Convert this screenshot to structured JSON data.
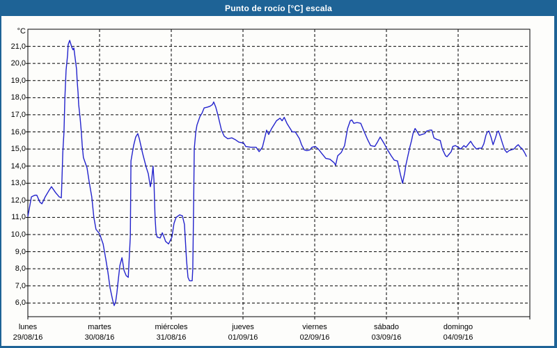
{
  "window": {
    "title": "Punto de rocío [°C] escala"
  },
  "colors": {
    "frame_and_titlebar": "#1e6396",
    "background": "#fdfdfb",
    "line": "#2222cc",
    "grid": "#000000",
    "text": "#000000"
  },
  "chart_data": {
    "type": "line",
    "title": "Punto de rocío [°C] escala",
    "ylabel": "°C",
    "xlabel": "",
    "grid": "dashed",
    "legend": "none",
    "ylim": [
      5.2,
      22.0
    ],
    "yticks": {
      "min": 6,
      "max": 21,
      "step": 1,
      "decimal_separator": ","
    },
    "x_hours_range": [
      0,
      168
    ],
    "x_day_ticks_hours": [
      0,
      24,
      48,
      72,
      96,
      120,
      144,
      168
    ],
    "day_labels": [
      {
        "day": "lunes",
        "date": "29/08/16"
      },
      {
        "day": "martes",
        "date": "30/08/16"
      },
      {
        "day": "miércoles",
        "date": "31/08/16"
      },
      {
        "day": "jueves",
        "date": "01/09/16"
      },
      {
        "day": "viernes",
        "date": "02/09/16"
      },
      {
        "day": "sábado",
        "date": "03/09/16"
      },
      {
        "day": "domingo",
        "date": "04/09/16"
      }
    ],
    "series": [
      {
        "name": "Punto de rocío",
        "unit": "°C",
        "points_hour_value": [
          [
            0,
            11.05
          ],
          [
            1.2,
            12.2
          ],
          [
            2.3,
            12.3
          ],
          [
            3,
            12.3
          ],
          [
            4,
            11.9
          ],
          [
            4.7,
            11.8
          ],
          [
            5.8,
            12.2
          ],
          [
            7,
            12.55
          ],
          [
            7.9,
            12.8
          ],
          [
            9.3,
            12.45
          ],
          [
            10.5,
            12.2
          ],
          [
            11.2,
            12.15
          ],
          [
            11.4,
            13.1
          ],
          [
            11.7,
            14.8
          ],
          [
            12.1,
            16
          ],
          [
            12.4,
            18
          ],
          [
            12.8,
            19.6
          ],
          [
            13.3,
            20.5
          ],
          [
            13.5,
            21.1
          ],
          [
            14,
            21.35
          ],
          [
            14.7,
            20.95
          ],
          [
            15.1,
            20.8
          ],
          [
            15.4,
            20.9
          ],
          [
            15.8,
            20.35
          ],
          [
            16.3,
            19.65
          ],
          [
            16.5,
            19
          ],
          [
            16.8,
            18.3
          ],
          [
            17,
            17.6
          ],
          [
            17.5,
            16.8
          ],
          [
            17.9,
            16
          ],
          [
            18.2,
            15.2
          ],
          [
            18.6,
            14.5
          ],
          [
            19.8,
            13.9
          ],
          [
            20.5,
            13.1
          ],
          [
            21.4,
            12.2
          ],
          [
            22.1,
            11
          ],
          [
            22.8,
            10.3
          ],
          [
            24,
            10.05
          ],
          [
            25.2,
            9.45
          ],
          [
            26.1,
            8.55
          ],
          [
            26.8,
            7.8
          ],
          [
            27.5,
            6.9
          ],
          [
            28.4,
            6.15
          ],
          [
            28.9,
            5.85
          ],
          [
            29.4,
            6.1
          ],
          [
            29.8,
            6.6
          ],
          [
            30.3,
            7.4
          ],
          [
            30.8,
            8.2
          ],
          [
            31.5,
            8.65
          ],
          [
            32.2,
            7.9
          ],
          [
            32.9,
            7.6
          ],
          [
            33.6,
            7.5
          ],
          [
            34.3,
            9.9
          ],
          [
            34.5,
            14.3
          ],
          [
            35,
            14.8
          ],
          [
            35.4,
            15.2
          ],
          [
            36.1,
            15.7
          ],
          [
            36.8,
            15.9
          ],
          [
            37.3,
            15.6
          ],
          [
            38.4,
            14.75
          ],
          [
            39.6,
            13.95
          ],
          [
            40.3,
            13.55
          ],
          [
            40.8,
            13
          ],
          [
            41,
            12.8
          ],
          [
            41.5,
            13.3
          ],
          [
            41.9,
            14
          ],
          [
            42.2,
            13.2
          ],
          [
            42.4,
            11.9
          ],
          [
            42.6,
            10.95
          ],
          [
            42.9,
            10.1
          ],
          [
            43.3,
            9.85
          ],
          [
            44.3,
            9.8
          ],
          [
            45,
            10.1
          ],
          [
            45.7,
            9.8
          ],
          [
            46.1,
            9.6
          ],
          [
            47.1,
            9.45
          ],
          [
            48.2,
            9.85
          ],
          [
            48.9,
            10.65
          ],
          [
            49.6,
            11
          ],
          [
            50.8,
            11.15
          ],
          [
            51.7,
            11.1
          ],
          [
            52.4,
            10.6
          ],
          [
            53.1,
            8.5
          ],
          [
            53.6,
            7.5
          ],
          [
            54.1,
            7.3
          ],
          [
            55,
            7.3
          ],
          [
            55.2,
            8
          ],
          [
            55.5,
            12
          ],
          [
            55.7,
            15
          ],
          [
            56.2,
            16
          ],
          [
            56.6,
            16.4
          ],
          [
            57.6,
            16.9
          ],
          [
            58.3,
            17.1
          ],
          [
            59,
            17.4
          ],
          [
            60.1,
            17.45
          ],
          [
            61,
            17.5
          ],
          [
            61.8,
            17.6
          ],
          [
            62.2,
            17.75
          ],
          [
            62.9,
            17.45
          ],
          [
            63.6,
            17
          ],
          [
            64.8,
            16.1
          ],
          [
            65.7,
            15.75
          ],
          [
            66.9,
            15.6
          ],
          [
            68.3,
            15.65
          ],
          [
            69.4,
            15.55
          ],
          [
            70.6,
            15.4
          ],
          [
            72.2,
            15.35
          ],
          [
            72.9,
            15.15
          ],
          [
            74.6,
            15.1
          ],
          [
            76.4,
            15.1
          ],
          [
            77.4,
            14.85
          ],
          [
            78.5,
            15.1
          ],
          [
            79.2,
            15.6
          ],
          [
            79.9,
            16.1
          ],
          [
            80.6,
            15.85
          ],
          [
            81.6,
            16.2
          ],
          [
            82.5,
            16.45
          ],
          [
            83.2,
            16.65
          ],
          [
            84.4,
            16.8
          ],
          [
            85.1,
            16.65
          ],
          [
            85.8,
            16.85
          ],
          [
            86.7,
            16.5
          ],
          [
            87.4,
            16.3
          ],
          [
            88.5,
            16
          ],
          [
            89.5,
            16
          ],
          [
            90.9,
            15.6
          ],
          [
            91.6,
            15.25
          ],
          [
            92.5,
            14.95
          ],
          [
            93.4,
            14.9
          ],
          [
            94.4,
            14.95
          ],
          [
            95.1,
            15.1
          ],
          [
            96.2,
            15.15
          ],
          [
            97.2,
            15
          ],
          [
            98.3,
            14.75
          ],
          [
            99.7,
            14.45
          ],
          [
            101.1,
            14.4
          ],
          [
            102.5,
            14.2
          ],
          [
            103,
            14.05
          ],
          [
            103.7,
            14.6
          ],
          [
            104.9,
            14.8
          ],
          [
            106,
            15.2
          ],
          [
            107,
            16.2
          ],
          [
            107.9,
            16.65
          ],
          [
            108.4,
            16.7
          ],
          [
            109.1,
            16.5
          ],
          [
            110.2,
            16.55
          ],
          [
            111.4,
            16.5
          ],
          [
            112.6,
            16
          ],
          [
            113.7,
            15.55
          ],
          [
            114.7,
            15.2
          ],
          [
            116.1,
            15.15
          ],
          [
            117,
            15.4
          ],
          [
            117.9,
            15.7
          ],
          [
            118.6,
            15.5
          ],
          [
            119.3,
            15.3
          ],
          [
            120.2,
            15
          ],
          [
            121.6,
            14.6
          ],
          [
            122.6,
            14.35
          ],
          [
            123.7,
            14.3
          ],
          [
            124.7,
            13.5
          ],
          [
            125.4,
            13
          ],
          [
            126.1,
            13.6
          ],
          [
            126.5,
            14.05
          ],
          [
            127.7,
            15
          ],
          [
            128.4,
            15.5
          ],
          [
            128.9,
            15.9
          ],
          [
            129.6,
            16.2
          ],
          [
            130.3,
            16
          ],
          [
            131,
            15.8
          ],
          [
            131.9,
            15.85
          ],
          [
            132.8,
            15.9
          ],
          [
            133.5,
            16.05
          ],
          [
            134.5,
            16.1
          ],
          [
            135.2,
            16.1
          ],
          [
            135.9,
            15.65
          ],
          [
            137,
            15.55
          ],
          [
            138,
            15.5
          ],
          [
            138.7,
            15
          ],
          [
            139.8,
            14.6
          ],
          [
            140.3,
            14.55
          ],
          [
            141,
            14.7
          ],
          [
            141.7,
            14.85
          ],
          [
            142.2,
            15.15
          ],
          [
            143.1,
            15.2
          ],
          [
            144,
            15.1
          ],
          [
            144.9,
            15
          ],
          [
            145.9,
            15.2
          ],
          [
            146.6,
            15.1
          ],
          [
            147.5,
            15.3
          ],
          [
            148.2,
            15.45
          ],
          [
            149.1,
            15.2
          ],
          [
            150.1,
            15
          ],
          [
            151,
            15.05
          ],
          [
            151.9,
            15.05
          ],
          [
            152.6,
            15.3
          ],
          [
            153.3,
            15.8
          ],
          [
            153.8,
            16
          ],
          [
            154.3,
            16.05
          ],
          [
            155,
            15.7
          ],
          [
            155.7,
            15.25
          ],
          [
            156.4,
            15.6
          ],
          [
            157.1,
            16
          ],
          [
            157.5,
            16.05
          ],
          [
            158.2,
            15.7
          ],
          [
            158.9,
            15.3
          ],
          [
            159.6,
            14.95
          ],
          [
            160.3,
            14.8
          ],
          [
            161,
            14.9
          ],
          [
            161.7,
            14.95
          ],
          [
            162.7,
            15
          ],
          [
            163.4,
            15.15
          ],
          [
            164.1,
            15.25
          ],
          [
            164.8,
            15.1
          ],
          [
            165.5,
            15
          ],
          [
            166.2,
            14.8
          ],
          [
            166.9,
            14.55
          ]
        ]
      }
    ]
  }
}
